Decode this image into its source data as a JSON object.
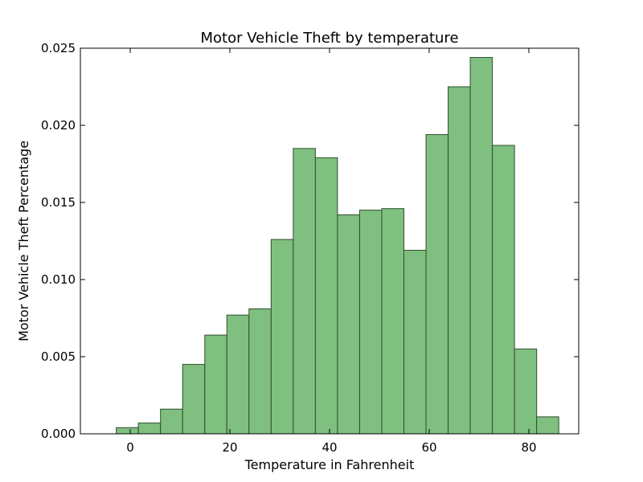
{
  "chart_data": {
    "type": "bar",
    "title": "Motor Vehicle Theft by temperature",
    "xlabel": "Temperature in Fahrenheit",
    "ylabel": "Motor Vehicle Theft Percentage",
    "xlim": [
      -10,
      90
    ],
    "ylim": [
      0,
      0.025
    ],
    "grid": false,
    "x_ticks": [
      0,
      20,
      40,
      60,
      80
    ],
    "y_ticks": [
      0.0,
      0.005,
      0.01,
      0.015,
      0.02,
      0.025
    ],
    "y_tick_labels": [
      "0.000",
      "0.005",
      "0.010",
      "0.015",
      "0.020",
      "0.025"
    ],
    "bin_edges": [
      -2.8,
      1.64,
      6.08,
      10.52,
      14.96,
      19.4,
      23.84,
      28.28,
      32.72,
      37.16,
      41.6,
      46.04,
      50.48,
      54.92,
      59.36,
      63.8,
      68.24,
      72.68,
      77.12,
      81.56,
      86.0
    ],
    "values": [
      0.0004,
      0.0007,
      0.0016,
      0.0045,
      0.0064,
      0.0077,
      0.0081,
      0.0126,
      0.0185,
      0.0179,
      0.0142,
      0.0145,
      0.0146,
      0.0119,
      0.0194,
      0.0225,
      0.0244,
      0.0187,
      0.0055,
      0.0011
    ],
    "colors": {
      "bar_fill": "#7fbf7f",
      "bar_edge": "#2f4f2f"
    }
  }
}
